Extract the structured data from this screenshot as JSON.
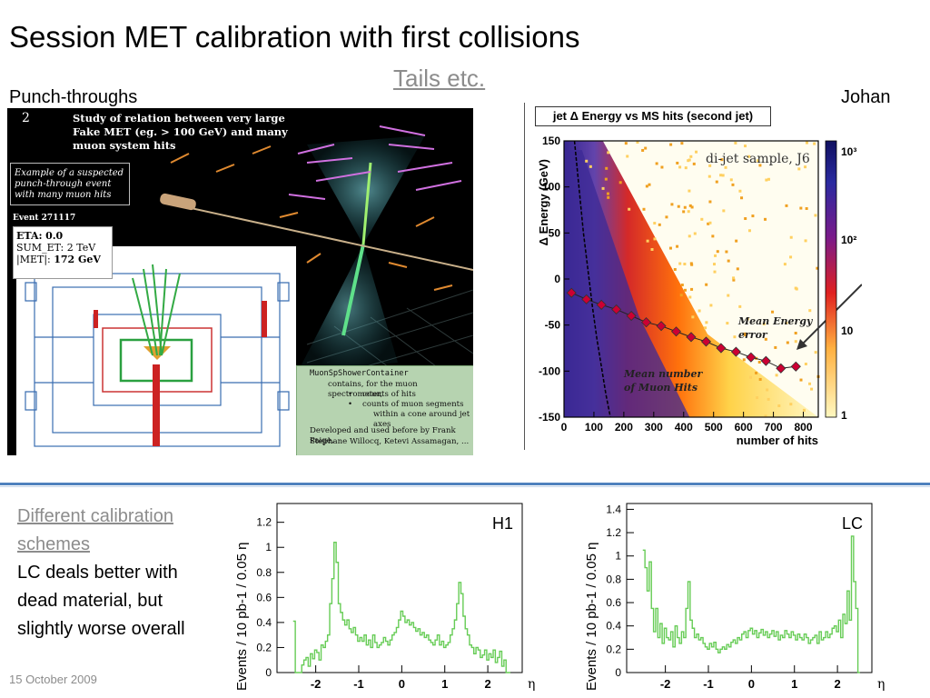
{
  "slide": {
    "title": "Session MET calibration with first collisions",
    "subtitle": "Tails etc.",
    "left_label": "Punch-throughs",
    "right_label": "Johan",
    "calibration_link": "Different calibration schemes",
    "calibration_text": "LC deals better with dead material, but slightly worse overall",
    "date": "15 October 2009"
  },
  "event_display": {
    "panel_number": "2",
    "study_text": "Study of relation between very large Fake MET (eg. > 100 GeV) and many muon system hits",
    "example_text": "Example of a suspected punch-through event with many muon hits",
    "event_number": "Event 271117",
    "eta_label": "ETA:",
    "eta_value": "0.0",
    "sumet_label": "SUM_ET:",
    "sumet_value": "2 TeV",
    "met_label": "|MET|:",
    "met_value": "172 GeV",
    "muon_title": "MuonSpShowerContainer",
    "muon_line1": "contains, for the muon spectrometer,",
    "muon_bullet1": "counts of hits",
    "muon_bullet2": "counts of muon segments",
    "muon_line2": "within a cone around jet axes",
    "muon_line3": "Developed and used before by Frank Paige,",
    "muon_line4": "Stephane Willocq, Ketevi Assamagan, ..."
  },
  "colors": {
    "accent_divider": "#4f81bd",
    "muted_text": "#8c8c8c",
    "histogram_line": "#66cc55",
    "mean_marker": "#cc0033"
  },
  "chart_data": [
    {
      "type": "heatmap",
      "title": "jet Δ Energy vs MS hits (second jet)",
      "annotation": "di-jet sample, J6",
      "xlabel": "number of hits",
      "ylabel": "Δ Energy (GeV)",
      "xlim": [
        0,
        850
      ],
      "ylim": [
        -150,
        150
      ],
      "xticks": [
        "0",
        "100",
        "200",
        "300",
        "400",
        "500",
        "600",
        "700",
        "800"
      ],
      "yticks": [
        "150",
        "100",
        "50",
        "0",
        "-50",
        "-100",
        "-150"
      ],
      "z_scale": "log",
      "zticks": [
        "1",
        "10",
        "10²",
        "10³"
      ],
      "mean_energy_label": "Mean Energy error",
      "mean_hits_label": "Mean number of Muon Hits",
      "mean_energy_error": {
        "x": [
          25,
          75,
          125,
          175,
          225,
          275,
          325,
          375,
          425,
          475,
          525,
          575,
          625,
          675,
          725,
          775
        ],
        "y": [
          -15,
          -22,
          -28,
          -33,
          -40,
          -47,
          -51,
          -57,
          -63,
          -68,
          -75,
          -79,
          -85,
          -89,
          -97,
          -95
        ]
      },
      "mean_number_of_hits": {
        "x": [
          35,
          50,
          65,
          80,
          95,
          110,
          125,
          140,
          155
        ],
        "y": [
          150,
          100,
          50,
          10,
          -30,
          -65,
          -95,
          -125,
          -150
        ]
      }
    },
    {
      "type": "line",
      "name": "H1",
      "xlabel": "η",
      "ylabel": "Events / 10 pb-1 / 0.05 η",
      "xlim": [
        -2.9,
        2.8
      ],
      "ylim": [
        0,
        1.35
      ],
      "xticks": [
        "-2",
        "-1",
        "0",
        "1",
        "2"
      ],
      "yticks": [
        "0",
        "0.2",
        "0.4",
        "0.6",
        "0.8",
        "1",
        "1.2"
      ],
      "x": [
        -2.5,
        -2.45,
        -2.4,
        -2.35,
        -2.3,
        -2.25,
        -2.2,
        -2.15,
        -2.1,
        -2.05,
        -2,
        -1.95,
        -1.9,
        -1.85,
        -1.8,
        -1.75,
        -1.7,
        -1.65,
        -1.6,
        -1.55,
        -1.5,
        -1.45,
        -1.4,
        -1.35,
        -1.3,
        -1.25,
        -1.2,
        -1.15,
        -1.1,
        -1.05,
        -1,
        -0.95,
        -0.9,
        -0.85,
        -0.8,
        -0.75,
        -0.7,
        -0.65,
        -0.6,
        -0.55,
        -0.5,
        -0.45,
        -0.4,
        -0.35,
        -0.3,
        -0.25,
        -0.2,
        -0.15,
        -0.1,
        -0.05,
        0,
        0.05,
        0.1,
        0.15,
        0.2,
        0.25,
        0.3,
        0.35,
        0.4,
        0.45,
        0.5,
        0.55,
        0.6,
        0.65,
        0.7,
        0.75,
        0.8,
        0.85,
        0.9,
        0.95,
        1,
        1.05,
        1.1,
        1.15,
        1.2,
        1.25,
        1.3,
        1.35,
        1.4,
        1.45,
        1.5,
        1.55,
        1.6,
        1.65,
        1.7,
        1.75,
        1.8,
        1.85,
        1.9,
        1.95,
        2,
        2.05,
        2.1,
        2.15,
        2.2,
        2.25,
        2.3,
        2.35,
        2.4,
        2.45,
        2.5
      ],
      "y": [
        0.41,
        0.0,
        0.0,
        0.0,
        0.06,
        0.1,
        0.12,
        0.05,
        0.15,
        0.11,
        0.18,
        0.16,
        0.1,
        0.22,
        0.2,
        0.25,
        0.3,
        0.55,
        0.75,
        1.04,
        0.88,
        0.55,
        0.48,
        0.42,
        0.38,
        0.42,
        0.35,
        0.32,
        0.36,
        0.3,
        0.25,
        0.28,
        0.25,
        0.3,
        0.22,
        0.26,
        0.2,
        0.3,
        0.24,
        0.2,
        0.22,
        0.24,
        0.28,
        0.25,
        0.22,
        0.26,
        0.3,
        0.32,
        0.36,
        0.42,
        0.49,
        0.45,
        0.4,
        0.42,
        0.38,
        0.4,
        0.36,
        0.33,
        0.35,
        0.3,
        0.32,
        0.28,
        0.3,
        0.26,
        0.24,
        0.22,
        0.26,
        0.3,
        0.22,
        0.25,
        0.2,
        0.22,
        0.24,
        0.3,
        0.35,
        0.42,
        0.55,
        0.72,
        0.63,
        0.45,
        0.35,
        0.3,
        0.22,
        0.2,
        0.15,
        0.2,
        0.18,
        0.12,
        0.14,
        0.18,
        0.1,
        0.15,
        0.12,
        0.18,
        0.08,
        0.12,
        0.17,
        0.05,
        0.1,
        0.0,
        0.0
      ]
    },
    {
      "type": "line",
      "name": "LC",
      "xlabel": "η",
      "ylabel": "Events / 10 pb-1 / 0.05 η",
      "xlim": [
        -2.9,
        2.8
      ],
      "ylim": [
        0,
        1.45
      ],
      "xticks": [
        "-2",
        "-1",
        "0",
        "1",
        "2"
      ],
      "yticks": [
        "0",
        "0.2",
        "0.4",
        "0.6",
        "0.8",
        "1",
        "1.2",
        "1.4"
      ],
      "x": [
        -2.5,
        -2.45,
        -2.4,
        -2.35,
        -2.3,
        -2.25,
        -2.2,
        -2.15,
        -2.1,
        -2.05,
        -2,
        -1.95,
        -1.9,
        -1.85,
        -1.8,
        -1.75,
        -1.7,
        -1.65,
        -1.6,
        -1.55,
        -1.5,
        -1.45,
        -1.4,
        -1.35,
        -1.3,
        -1.25,
        -1.2,
        -1.15,
        -1.1,
        -1.05,
        -1,
        -0.95,
        -0.9,
        -0.85,
        -0.8,
        -0.75,
        -0.7,
        -0.65,
        -0.6,
        -0.55,
        -0.5,
        -0.45,
        -0.4,
        -0.35,
        -0.3,
        -0.25,
        -0.2,
        -0.15,
        -0.1,
        -0.05,
        0,
        0.05,
        0.1,
        0.15,
        0.2,
        0.25,
        0.3,
        0.35,
        0.4,
        0.45,
        0.5,
        0.55,
        0.6,
        0.65,
        0.7,
        0.75,
        0.8,
        0.85,
        0.9,
        0.95,
        1,
        1.05,
        1.1,
        1.15,
        1.2,
        1.25,
        1.3,
        1.35,
        1.4,
        1.45,
        1.5,
        1.55,
        1.6,
        1.65,
        1.7,
        1.75,
        1.8,
        1.85,
        1.9,
        1.95,
        2,
        2.05,
        2.1,
        2.15,
        2.2,
        2.25,
        2.3,
        2.35,
        2.4,
        2.45,
        2.5
      ],
      "y": [
        1.05,
        0.9,
        0.7,
        0.95,
        0.55,
        0.35,
        0.55,
        0.3,
        0.42,
        0.25,
        0.38,
        0.3,
        0.28,
        0.35,
        0.22,
        0.4,
        0.3,
        0.25,
        0.35,
        0.3,
        0.55,
        0.78,
        0.45,
        0.38,
        0.3,
        0.33,
        0.28,
        0.3,
        0.25,
        0.22,
        0.2,
        0.25,
        0.22,
        0.26,
        0.2,
        0.17,
        0.2,
        0.22,
        0.2,
        0.24,
        0.22,
        0.26,
        0.28,
        0.25,
        0.3,
        0.28,
        0.33,
        0.35,
        0.3,
        0.36,
        0.38,
        0.33,
        0.36,
        0.3,
        0.34,
        0.37,
        0.32,
        0.35,
        0.3,
        0.33,
        0.36,
        0.31,
        0.35,
        0.28,
        0.32,
        0.3,
        0.36,
        0.33,
        0.3,
        0.35,
        0.32,
        0.28,
        0.33,
        0.3,
        0.28,
        0.33,
        0.3,
        0.25,
        0.28,
        0.3,
        0.32,
        0.25,
        0.35,
        0.28,
        0.3,
        0.35,
        0.3,
        0.33,
        0.38,
        0.4,
        0.35,
        0.45,
        0.3,
        0.5,
        0.42,
        0.7,
        0.45,
        1.17,
        0.78,
        0.55,
        0.0
      ]
    }
  ]
}
